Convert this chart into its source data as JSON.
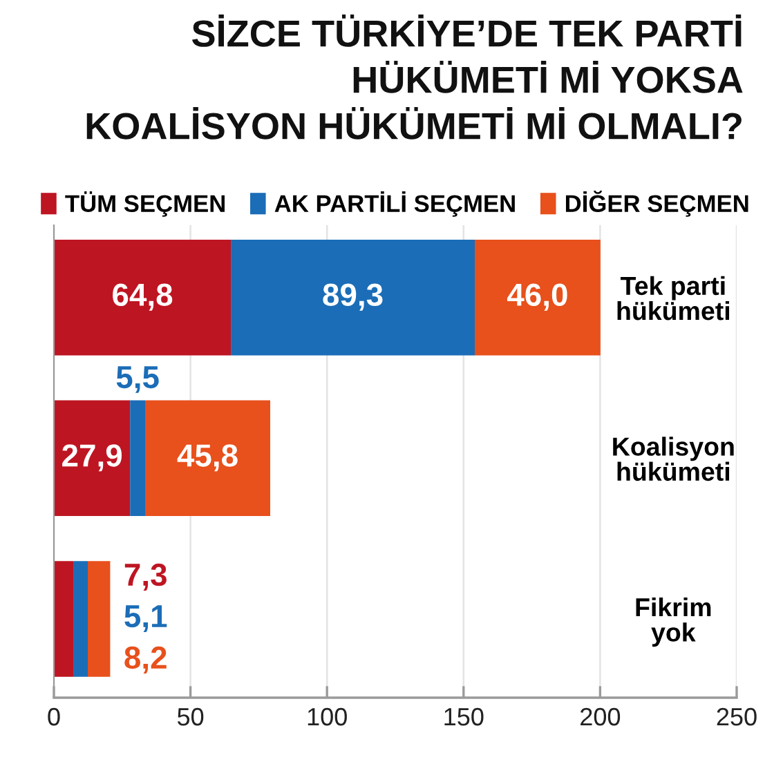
{
  "chart_data": {
    "type": "bar",
    "orientation": "horizontal",
    "stacked": true,
    "title": "SİZCE TÜRKİYE’DE TEK PARTİ\nHÜKÜMETİ Mİ YOKSA\nKOALİSYON HÜKÜMETİ Mİ OLMALI?",
    "categories": [
      "Tek parti\nhükümeti",
      "Koalisyon\nhükümeti",
      "Fikrim\nyok"
    ],
    "series": [
      {
        "name": "TÜM SEÇMEN",
        "color": "#be1522",
        "values": [
          64.8,
          27.9,
          7.3
        ],
        "value_labels": [
          "64,8",
          "27,9",
          "7,3"
        ]
      },
      {
        "name": "AK PARTİLİ SEÇMEN",
        "color": "#1b6db7",
        "values": [
          89.3,
          5.5,
          5.1
        ],
        "value_labels": [
          "89,3",
          "5,5",
          "5,1"
        ]
      },
      {
        "name": "DİĞER SEÇMEN",
        "color": "#e8501c",
        "values": [
          46.0,
          45.8,
          8.2
        ],
        "value_labels": [
          "46,0",
          "45,8",
          "8,2"
        ]
      }
    ],
    "xlim": [
      0,
      250
    ],
    "xticks": [
      0,
      50,
      100,
      150,
      200,
      250
    ],
    "grid": "x",
    "legend": "top"
  }
}
